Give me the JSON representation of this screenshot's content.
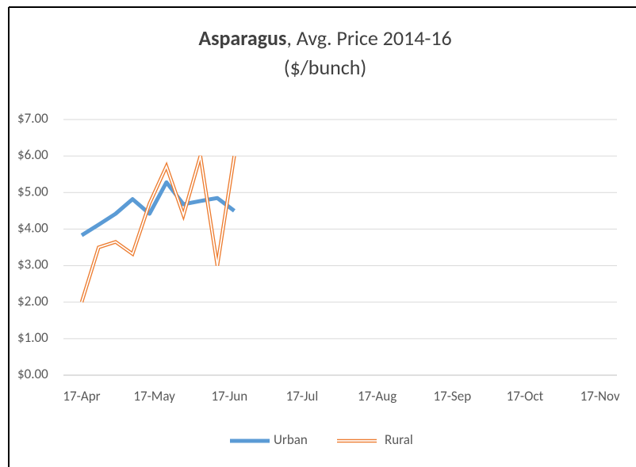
{
  "chart_data": {
    "type": "line",
    "title": "Asparagus",
    "title_rest": ", Avg. Price 2014-16",
    "subtitle": "($/bunch)",
    "x": [
      "04-17",
      "04-24",
      "05-01",
      "05-08",
      "05-15",
      "05-22",
      "05-29",
      "06-05",
      "06-12",
      "06-19"
    ],
    "series": [
      {
        "name": "Urban",
        "color": "#5b9bd5",
        "values": [
          3.83,
          4.12,
          4.42,
          4.82,
          4.42,
          5.28,
          4.68,
          4.77,
          4.85,
          4.5
        ]
      },
      {
        "name": "Rural",
        "color": "#ed7d31",
        "values": [
          2.0,
          3.5,
          3.65,
          3.32,
          4.7,
          5.72,
          4.38,
          6.0,
          3.0,
          6.0
        ]
      }
    ],
    "xlim": [
      "04-17",
      "11-24"
    ],
    "xticks": [
      {
        "value": "04-17",
        "label": "17-Apr"
      },
      {
        "value": "05-17",
        "label": "17-May"
      },
      {
        "value": "06-17",
        "label": "17-Jun"
      },
      {
        "value": "07-17",
        "label": "17-Jul"
      },
      {
        "value": "08-17",
        "label": "17-Aug"
      },
      {
        "value": "09-17",
        "label": "17-Sep"
      },
      {
        "value": "10-17",
        "label": "17-Oct"
      },
      {
        "value": "11-17",
        "label": "17-Nov"
      }
    ],
    "ylim": [
      0,
      7
    ],
    "yticks": [
      {
        "value": 0,
        "label": "$0.00"
      },
      {
        "value": 1,
        "label": "$1.00"
      },
      {
        "value": 2,
        "label": "$2.00"
      },
      {
        "value": 3,
        "label": "$3.00"
      },
      {
        "value": 4,
        "label": "$4.00"
      },
      {
        "value": 5,
        "label": "$5.00"
      },
      {
        "value": 6,
        "label": "$6.00"
      },
      {
        "value": 7,
        "label": "$7.00"
      }
    ],
    "grid": true,
    "legend": "bottom"
  }
}
